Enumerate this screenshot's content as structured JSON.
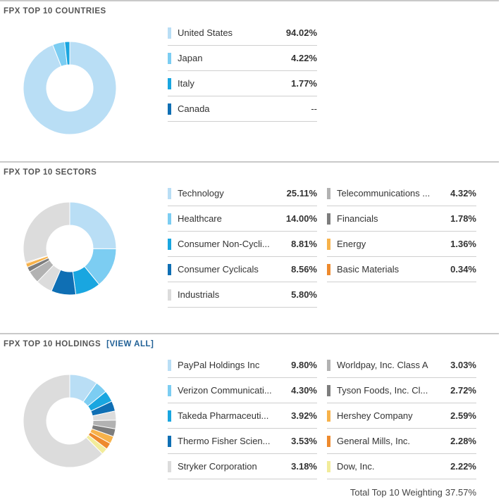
{
  "countries": {
    "title": "FPX TOP 10 COUNTRIES",
    "items": [
      {
        "label": "United States",
        "value": "94.02%",
        "pct": 94.02,
        "color": "#b9def5"
      },
      {
        "label": "Japan",
        "value": "4.22%",
        "pct": 4.22,
        "color": "#7ccdf2"
      },
      {
        "label": "Italy",
        "value": "1.77%",
        "pct": 1.77,
        "color": "#19a6e0"
      },
      {
        "label": "Canada",
        "value": "--",
        "pct": 0,
        "color": "#0f6fb4"
      }
    ]
  },
  "sectors": {
    "title": "FPX TOP 10 SECTORS",
    "items": [
      {
        "label": "Technology",
        "value": "25.11%",
        "pct": 25.11,
        "color": "#b9def5"
      },
      {
        "label": "Healthcare",
        "value": "14.00%",
        "pct": 14.0,
        "color": "#7ccdf2"
      },
      {
        "label": "Consumer Non-Cycli...",
        "value": "8.81%",
        "pct": 8.81,
        "color": "#19a6e0"
      },
      {
        "label": "Consumer Cyclicals",
        "value": "8.56%",
        "pct": 8.56,
        "color": "#0f6fb4"
      },
      {
        "label": "Industrials",
        "value": "5.80%",
        "pct": 5.8,
        "color": "#dcdcdc"
      },
      {
        "label": "Telecommunications ...",
        "value": "4.32%",
        "pct": 4.32,
        "color": "#b2b2b2"
      },
      {
        "label": "Financials",
        "value": "1.78%",
        "pct": 1.78,
        "color": "#7d7d7d"
      },
      {
        "label": "Energy",
        "value": "1.36%",
        "pct": 1.36,
        "color": "#f7b24a"
      },
      {
        "label": "Basic Materials",
        "value": "0.34%",
        "pct": 0.34,
        "color": "#ee8a2e"
      }
    ]
  },
  "holdings": {
    "title": "FPX TOP 10 HOLDINGS",
    "view_all": "[VIEW ALL]",
    "items": [
      {
        "label": "PayPal Holdings Inc",
        "value": "9.80%",
        "pct": 9.8,
        "color": "#b9def5"
      },
      {
        "label": "Verizon Communicati...",
        "value": "4.30%",
        "pct": 4.3,
        "color": "#7ccdf2"
      },
      {
        "label": "Takeda Pharmaceuti...",
        "value": "3.92%",
        "pct": 3.92,
        "color": "#19a6e0"
      },
      {
        "label": "Thermo Fisher Scien...",
        "value": "3.53%",
        "pct": 3.53,
        "color": "#0f6fb4"
      },
      {
        "label": "Stryker Corporation",
        "value": "3.18%",
        "pct": 3.18,
        "color": "#dcdcdc"
      },
      {
        "label": "Worldpay, Inc. Class A",
        "value": "3.03%",
        "pct": 3.03,
        "color": "#b2b2b2"
      },
      {
        "label": "Tyson Foods, Inc. Cl...",
        "value": "2.72%",
        "pct": 2.72,
        "color": "#7d7d7d"
      },
      {
        "label": "Hershey Company",
        "value": "2.59%",
        "pct": 2.59,
        "color": "#f7b24a"
      },
      {
        "label": "General Mills, Inc.",
        "value": "2.28%",
        "pct": 2.28,
        "color": "#ee8a2e"
      },
      {
        "label": "Dow, Inc.",
        "value": "2.22%",
        "pct": 2.22,
        "color": "#f2ec9a"
      }
    ],
    "remainder_color": "#dcdcdc",
    "total_label": "Total Top 10 Weighting",
    "total_value": "37.57%"
  }
}
